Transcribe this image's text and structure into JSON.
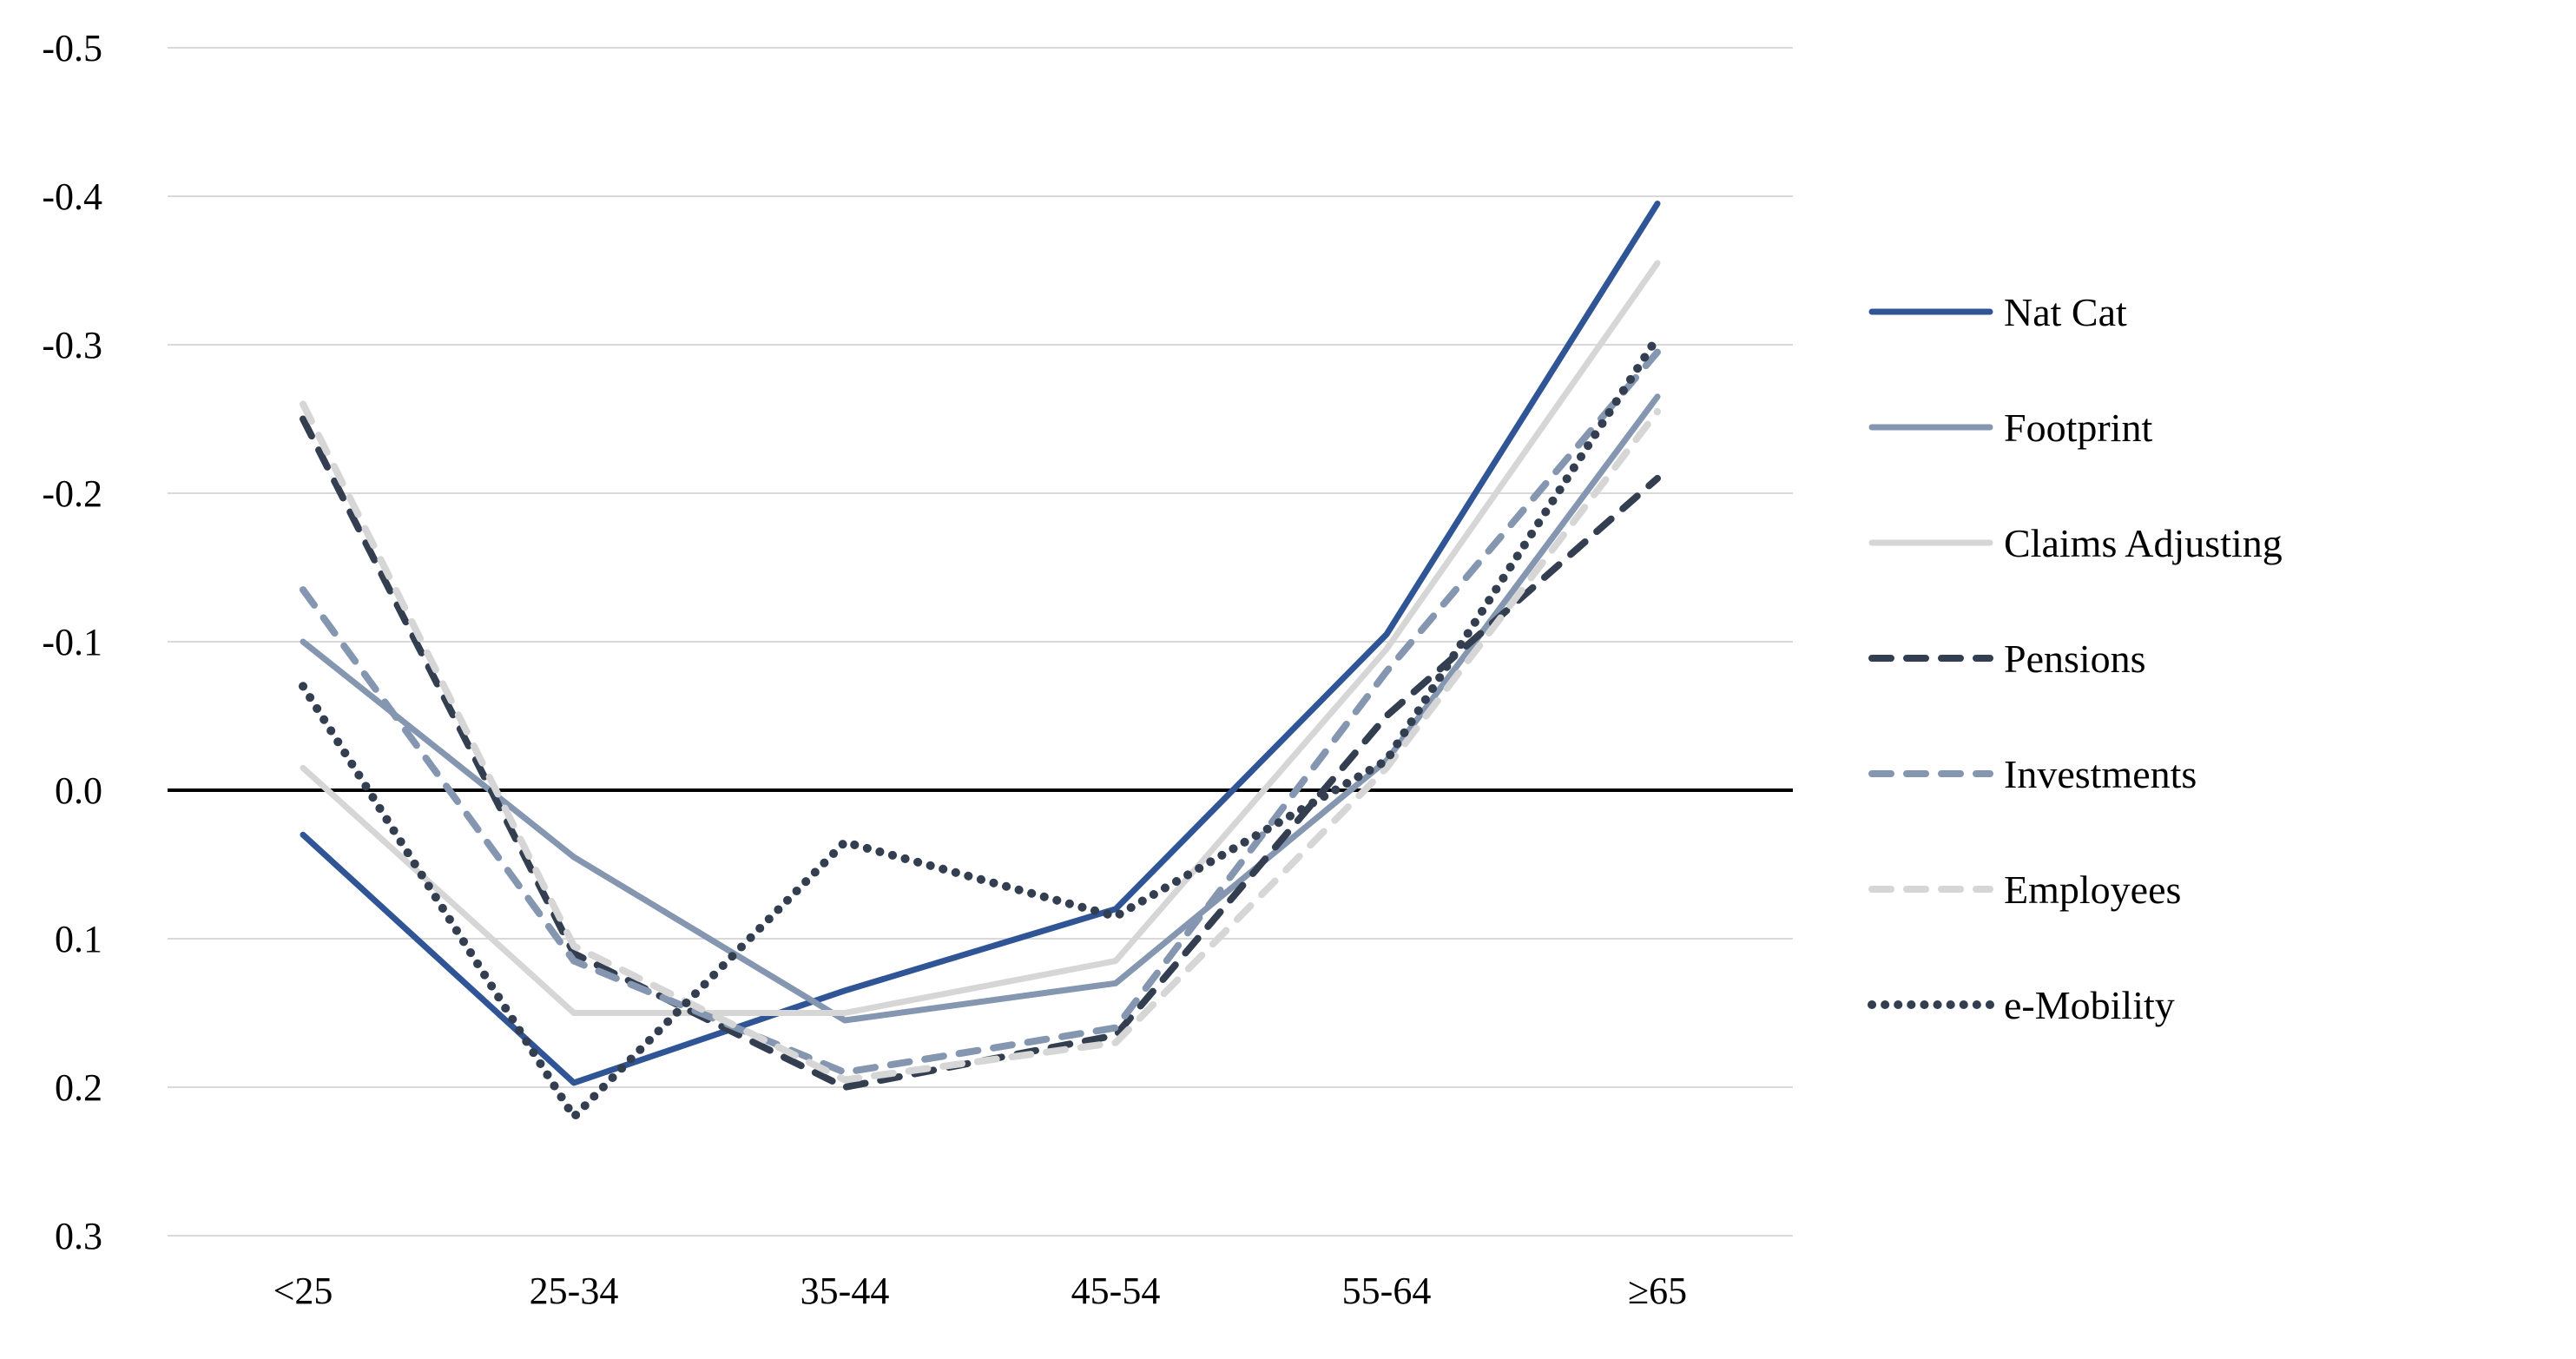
{
  "chart_data": {
    "type": "line",
    "title": "",
    "xlabel": "",
    "ylabel": "",
    "categories": [
      "<25",
      "25-34",
      "35-44",
      "45-54",
      "55-64",
      "≥65"
    ],
    "series": [
      {
        "name": "Nat Cat",
        "style": "solid",
        "color": "#2F5597",
        "values": [
          0.03,
          0.197,
          0.135,
          0.08,
          -0.105,
          -0.395
        ]
      },
      {
        "name": "Footprint",
        "style": "solid",
        "color": "#8496B0",
        "values": [
          -0.1,
          0.045,
          0.155,
          0.13,
          -0.02,
          -0.265
        ]
      },
      {
        "name": "Claims Adjusting",
        "style": "solid",
        "color": "#D6D6D6",
        "values": [
          -0.015,
          0.15,
          0.15,
          0.115,
          -0.095,
          -0.355
        ]
      },
      {
        "name": "Pensions",
        "style": "dashed",
        "color": "#333F50",
        "values": [
          -0.25,
          0.11,
          0.2,
          0.165,
          -0.05,
          -0.21
        ]
      },
      {
        "name": "Investments",
        "style": "dashed",
        "color": "#8496B0",
        "values": [
          -0.135,
          0.115,
          0.19,
          0.16,
          -0.08,
          -0.295
        ]
      },
      {
        "name": "Employees",
        "style": "dashed",
        "color": "#D6D6D6",
        "values": [
          -0.26,
          0.105,
          0.195,
          0.17,
          -0.015,
          -0.255
        ]
      },
      {
        "name": "e-Mobility",
        "style": "dotted",
        "color": "#333F50",
        "values": [
          -0.07,
          0.22,
          0.035,
          0.085,
          -0.02,
          -0.305
        ]
      }
    ],
    "y_axis": {
      "inverted": true,
      "min": -0.5,
      "max": 0.3,
      "ticks": [
        -0.5,
        -0.4,
        -0.3,
        -0.2,
        -0.1,
        0.0,
        0.1,
        0.2,
        0.3
      ],
      "tick_labels": [
        "-0.5",
        "-0.4",
        "-0.3",
        "-0.2",
        "-0.1",
        "0.0",
        "0.1",
        "0.2",
        "0.3"
      ],
      "zero_line": true
    },
    "grid": true,
    "gridline_color": "#D9D9D9",
    "zero_line_color": "#000000",
    "legend_position": "right",
    "legend": [
      "Nat Cat",
      "Footprint",
      "Claims Adjusting",
      "Pensions",
      "Investments",
      "Employees",
      "e-Mobility"
    ]
  }
}
